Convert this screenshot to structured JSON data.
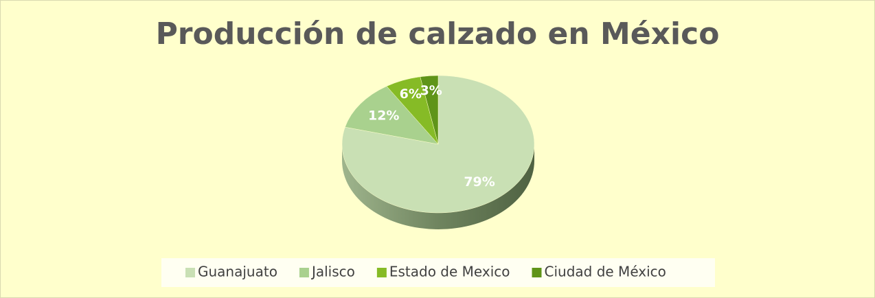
{
  "chart_data": {
    "type": "pie",
    "title": "Producción de calzado en México",
    "categories": [
      "Guanajuato",
      "Jalisco",
      "Estado de Mexico",
      "Ciudad de México"
    ],
    "values": [
      79,
      12,
      6,
      3
    ],
    "value_labels": [
      "79%",
      "12%",
      "6%",
      "3%"
    ],
    "colors": [
      "#c9e0b4",
      "#a9d18e",
      "#86bb26",
      "#5f9419"
    ],
    "legend": "bottom"
  }
}
